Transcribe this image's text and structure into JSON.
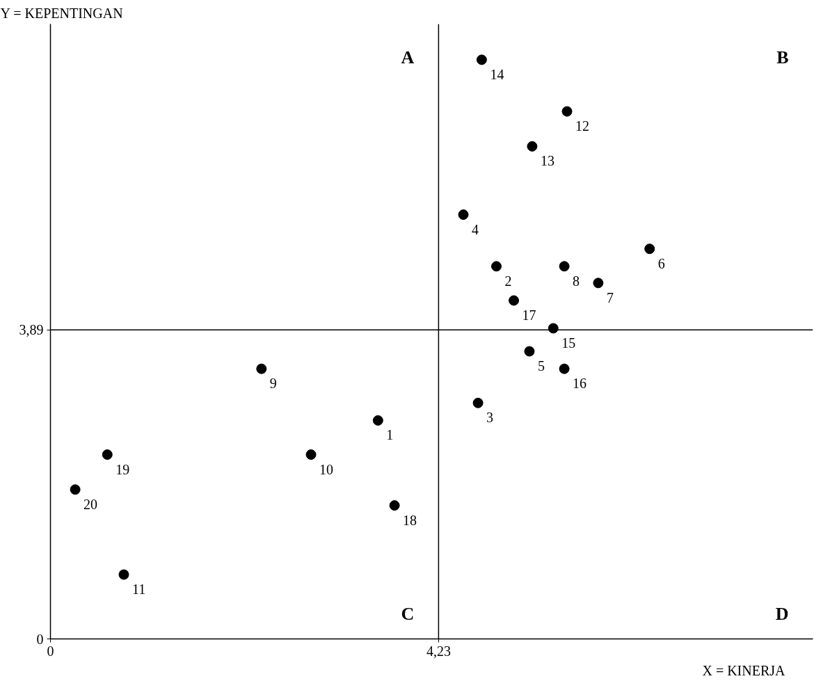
{
  "chart_data": {
    "type": "scatter",
    "xlabel": "X = KINERJA",
    "ylabel": "Y = KEPENTINGAN",
    "xlim": [
      0,
      8.31
    ],
    "ylim": [
      0,
      7.74
    ],
    "xticks": [
      {
        "value": 0,
        "label": "0"
      },
      {
        "value": 4.23,
        "label": "4,23"
      }
    ],
    "yticks": [
      {
        "value": 0,
        "label": "0"
      },
      {
        "value": 3.89,
        "label": "3,89"
      }
    ],
    "series": [
      {
        "color": "#000000",
        "x": [
          4.7,
          5.63,
          5.25,
          4.5,
          6.53,
          4.86,
          5.6,
          5.97,
          5.05,
          5.48,
          5.22,
          5.6,
          4.66,
          2.3,
          3.57,
          2.84,
          0.62,
          0.27,
          3.75,
          0.8
        ],
        "values": [
          7.29,
          6.64,
          6.2,
          5.34,
          4.91,
          4.69,
          4.69,
          4.48,
          4.26,
          3.91,
          3.62,
          3.4,
          2.97,
          3.4,
          2.75,
          2.32,
          2.32,
          1.88,
          1.68,
          0.81
        ]
      }
    ],
    "marker": "circle",
    "ref_lines": [
      {
        "axis": "x",
        "value": 4.23,
        "color": "#000000"
      },
      {
        "axis": "y",
        "value": 3.89,
        "color": "#000000"
      }
    ],
    "annotations": [
      "A",
      "B",
      "C",
      "D",
      {
        "text": "14",
        "x": 4.7,
        "y": 7.29
      },
      {
        "text": "12",
        "x": 5.63,
        "y": 6.64
      },
      {
        "text": "13",
        "x": 5.25,
        "y": 6.2
      },
      {
        "text": "4",
        "x": 4.5,
        "y": 5.34
      },
      {
        "text": "6",
        "x": 6.53,
        "y": 4.91
      },
      {
        "text": "2",
        "x": 4.86,
        "y": 4.69
      },
      {
        "text": "8",
        "x": 5.6,
        "y": 4.69
      },
      {
        "text": "7",
        "x": 5.97,
        "y": 4.48
      },
      {
        "text": "17",
        "x": 5.05,
        "y": 4.26
      },
      {
        "text": "15",
        "x": 5.48,
        "y": 3.91
      },
      {
        "text": "5",
        "x": 5.22,
        "y": 3.62
      },
      {
        "text": "16",
        "x": 5.6,
        "y": 3.4
      },
      {
        "text": "3",
        "x": 4.66,
        "y": 2.97
      },
      {
        "text": "9",
        "x": 2.3,
        "y": 3.4
      },
      {
        "text": "1",
        "x": 3.57,
        "y": 2.75
      },
      {
        "text": "10",
        "x": 2.84,
        "y": 2.32
      },
      {
        "text": "19",
        "x": 0.62,
        "y": 2.32
      },
      {
        "text": "20",
        "x": 0.27,
        "y": 1.88
      },
      {
        "text": "18",
        "x": 3.75,
        "y": 1.68
      },
      {
        "text": "11",
        "x": 0.8,
        "y": 0.81
      }
    ]
  }
}
